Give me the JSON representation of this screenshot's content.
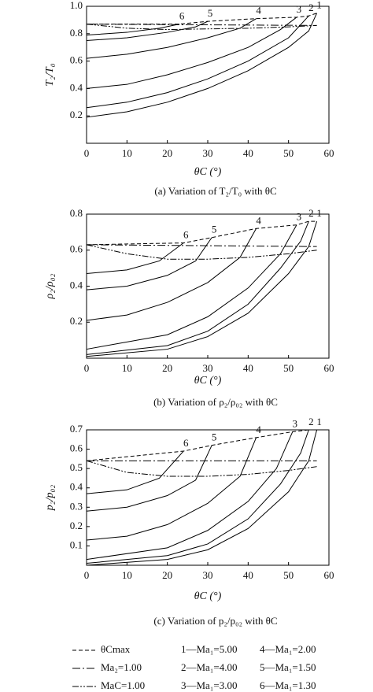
{
  "chart_data": [
    {
      "type": "line",
      "ylabel": "T₂/T₀",
      "xlabel": "θC (°)",
      "caption": "(a) Variation of  T₂/T₀ with θC",
      "xlim": [
        0,
        60
      ],
      "ylim": [
        0,
        1
      ],
      "xticks": [
        0,
        10,
        20,
        30,
        40,
        50,
        60
      ],
      "yticks": [
        0.2,
        0.4,
        0.6,
        {
          "value": 0.8,
          "label": "0.8"
        },
        {
          "value": 1,
          "label": "1.0"
        }
      ],
      "series": [
        {
          "name": "1",
          "dash": "solid",
          "color": "#000",
          "x": [
            0,
            10,
            20,
            30,
            40,
            50,
            55,
            57
          ],
          "values": [
            0.19,
            0.23,
            0.3,
            0.4,
            0.53,
            0.7,
            0.82,
            0.95
          ]
        },
        {
          "name": "2",
          "dash": "solid",
          "color": "#000",
          "x": [
            0,
            10,
            20,
            30,
            40,
            50,
            55
          ],
          "values": [
            0.26,
            0.3,
            0.37,
            0.47,
            0.6,
            0.77,
            0.93
          ]
        },
        {
          "name": "3",
          "dash": "solid",
          "color": "#000",
          "x": [
            0,
            10,
            20,
            30,
            40,
            48,
            52
          ],
          "values": [
            0.4,
            0.43,
            0.5,
            0.59,
            0.7,
            0.83,
            0.92
          ]
        },
        {
          "name": "4",
          "dash": "solid",
          "color": "#000",
          "x": [
            0,
            10,
            20,
            30,
            38,
            42
          ],
          "values": [
            0.62,
            0.65,
            0.7,
            0.77,
            0.84,
            0.91
          ]
        },
        {
          "name": "5",
          "dash": "solid",
          "color": "#000",
          "x": [
            0,
            10,
            20,
            27,
            30
          ],
          "values": [
            0.75,
            0.77,
            0.81,
            0.85,
            0.89
          ]
        },
        {
          "name": "6",
          "dash": "solid",
          "color": "#000",
          "x": [
            0,
            10,
            18,
            23
          ],
          "values": [
            0.79,
            0.81,
            0.84,
            0.87
          ]
        },
        {
          "dash": "dashed",
          "color": "#000",
          "x": [
            0,
            23,
            30,
            42,
            52,
            55,
            57
          ],
          "values": [
            0.87,
            0.87,
            0.89,
            0.91,
            0.92,
            0.93,
            0.95
          ]
        },
        {
          "dash": "dashdot",
          "color": "#000",
          "x": [
            0,
            57
          ],
          "values": [
            0.87,
            0.86
          ]
        },
        {
          "dash": "dashdotdot",
          "color": "#000",
          "x": [
            0,
            10,
            20,
            30,
            40,
            50,
            57
          ],
          "values": [
            0.87,
            0.84,
            0.83,
            0.835,
            0.84,
            0.85,
            0.86
          ]
        }
      ]
    },
    {
      "type": "line",
      "ylabel": "ρ₂/ρ₀₂",
      "xlabel": "θC (°)",
      "caption": "(b) Variation of  ρ₂/ρ₀₂ with θC",
      "xlim": [
        0,
        60
      ],
      "ylim": [
        0,
        0.8
      ],
      "xticks": [
        0,
        10,
        20,
        30,
        40,
        50,
        60
      ],
      "yticks": [
        0.2,
        0.4,
        0.6,
        0.8
      ],
      "series": [
        {
          "name": "1",
          "dash": "solid",
          "color": "#000",
          "x": [
            0,
            20,
            30,
            40,
            50,
            55,
            57
          ],
          "values": [
            0.01,
            0.05,
            0.12,
            0.25,
            0.47,
            0.62,
            0.76
          ]
        },
        {
          "name": "2",
          "dash": "solid",
          "color": "#000",
          "x": [
            0,
            20,
            30,
            40,
            48,
            53,
            55
          ],
          "values": [
            0.02,
            0.07,
            0.15,
            0.3,
            0.5,
            0.65,
            0.76
          ]
        },
        {
          "name": "3",
          "dash": "solid",
          "color": "#000",
          "x": [
            0,
            20,
            30,
            40,
            48,
            52
          ],
          "values": [
            0.05,
            0.13,
            0.23,
            0.39,
            0.58,
            0.74
          ]
        },
        {
          "name": "4",
          "dash": "solid",
          "color": "#000",
          "x": [
            0,
            10,
            20,
            30,
            38,
            42
          ],
          "values": [
            0.21,
            0.24,
            0.31,
            0.42,
            0.56,
            0.72
          ]
        },
        {
          "name": "5",
          "dash": "solid",
          "color": "#000",
          "x": [
            0,
            10,
            20,
            27,
            31
          ],
          "values": [
            0.38,
            0.4,
            0.46,
            0.54,
            0.67
          ]
        },
        {
          "name": "6",
          "dash": "solid",
          "color": "#000",
          "x": [
            0,
            10,
            18,
            24
          ],
          "values": [
            0.47,
            0.49,
            0.54,
            0.64
          ]
        },
        {
          "dash": "dashed",
          "color": "#000",
          "x": [
            0,
            24,
            31,
            42,
            52,
            55,
            57
          ],
          "values": [
            0.63,
            0.64,
            0.67,
            0.72,
            0.74,
            0.76,
            0.76
          ]
        },
        {
          "dash": "dashdot",
          "color": "#000",
          "x": [
            0,
            57
          ],
          "values": [
            0.63,
            0.62
          ]
        },
        {
          "dash": "dashdotdot",
          "color": "#000",
          "x": [
            0,
            10,
            20,
            30,
            40,
            50,
            57
          ],
          "values": [
            0.63,
            0.58,
            0.55,
            0.55,
            0.56,
            0.58,
            0.6
          ]
        }
      ]
    },
    {
      "type": "line",
      "ylabel": "p₂/p₀₂",
      "xlabel": "θC (°)",
      "caption": "(c) Variation of  p₂/p₀₂ with θC",
      "xlim": [
        0,
        60
      ],
      "ylim": [
        0,
        0.7
      ],
      "xticks": [
        0,
        10,
        20,
        30,
        40,
        50,
        60
      ],
      "yticks": [
        0.1,
        0.2,
        0.3,
        0.4,
        0.5,
        0.6,
        0.7
      ],
      "series": [
        {
          "name": "1",
          "dash": "solid",
          "color": "#000",
          "x": [
            0,
            20,
            30,
            40,
            50,
            55,
            57
          ],
          "values": [
            0.0,
            0.03,
            0.08,
            0.19,
            0.38,
            0.54,
            0.7
          ]
        },
        {
          "name": "2",
          "dash": "solid",
          "color": "#000",
          "x": [
            0,
            20,
            30,
            40,
            48,
            53,
            55
          ],
          "values": [
            0.01,
            0.05,
            0.11,
            0.24,
            0.42,
            0.58,
            0.7
          ]
        },
        {
          "name": "3",
          "dash": "solid",
          "color": "#000",
          "x": [
            0,
            20,
            30,
            40,
            47,
            51
          ],
          "values": [
            0.03,
            0.09,
            0.18,
            0.33,
            0.5,
            0.69
          ]
        },
        {
          "name": "4",
          "dash": "solid",
          "color": "#000",
          "x": [
            0,
            10,
            20,
            30,
            38,
            42
          ],
          "values": [
            0.13,
            0.15,
            0.21,
            0.32,
            0.46,
            0.66
          ]
        },
        {
          "name": "5",
          "dash": "solid",
          "color": "#000",
          "x": [
            0,
            10,
            20,
            27,
            31
          ],
          "values": [
            0.28,
            0.3,
            0.36,
            0.44,
            0.62
          ]
        },
        {
          "name": "6",
          "dash": "solid",
          "color": "#000",
          "x": [
            0,
            10,
            18,
            24
          ],
          "values": [
            0.37,
            0.39,
            0.45,
            0.59
          ]
        },
        {
          "dash": "dashed",
          "color": "#000",
          "x": [
            0,
            24,
            31,
            42,
            51,
            55,
            57
          ],
          "values": [
            0.54,
            0.59,
            0.62,
            0.66,
            0.69,
            0.7,
            0.7
          ]
        },
        {
          "dash": "dashdot",
          "color": "#000",
          "x": [
            0,
            57
          ],
          "values": [
            0.54,
            0.54
          ]
        },
        {
          "dash": "dashdotdot",
          "color": "#000",
          "x": [
            0,
            10,
            20,
            30,
            40,
            50,
            57
          ],
          "values": [
            0.54,
            0.48,
            0.46,
            0.46,
            0.47,
            0.49,
            0.51
          ]
        }
      ]
    }
  ],
  "legend": [
    {
      "label": "θCmax",
      "dash": "dashed"
    },
    {
      "label": "Ma₂=1.00",
      "dash": "dashdot"
    },
    {
      "label": "MaC=1.00",
      "dash": "dashdotdot"
    },
    {
      "label": "1—Ma₁=5.00"
    },
    {
      "label": "2—Ma₁=4.00"
    },
    {
      "label": "3—Ma₁=3.00"
    },
    {
      "label": "4—Ma₁=2.00"
    },
    {
      "label": "5—Ma₁=1.50"
    },
    {
      "label": "6—Ma₁=1.30"
    }
  ]
}
